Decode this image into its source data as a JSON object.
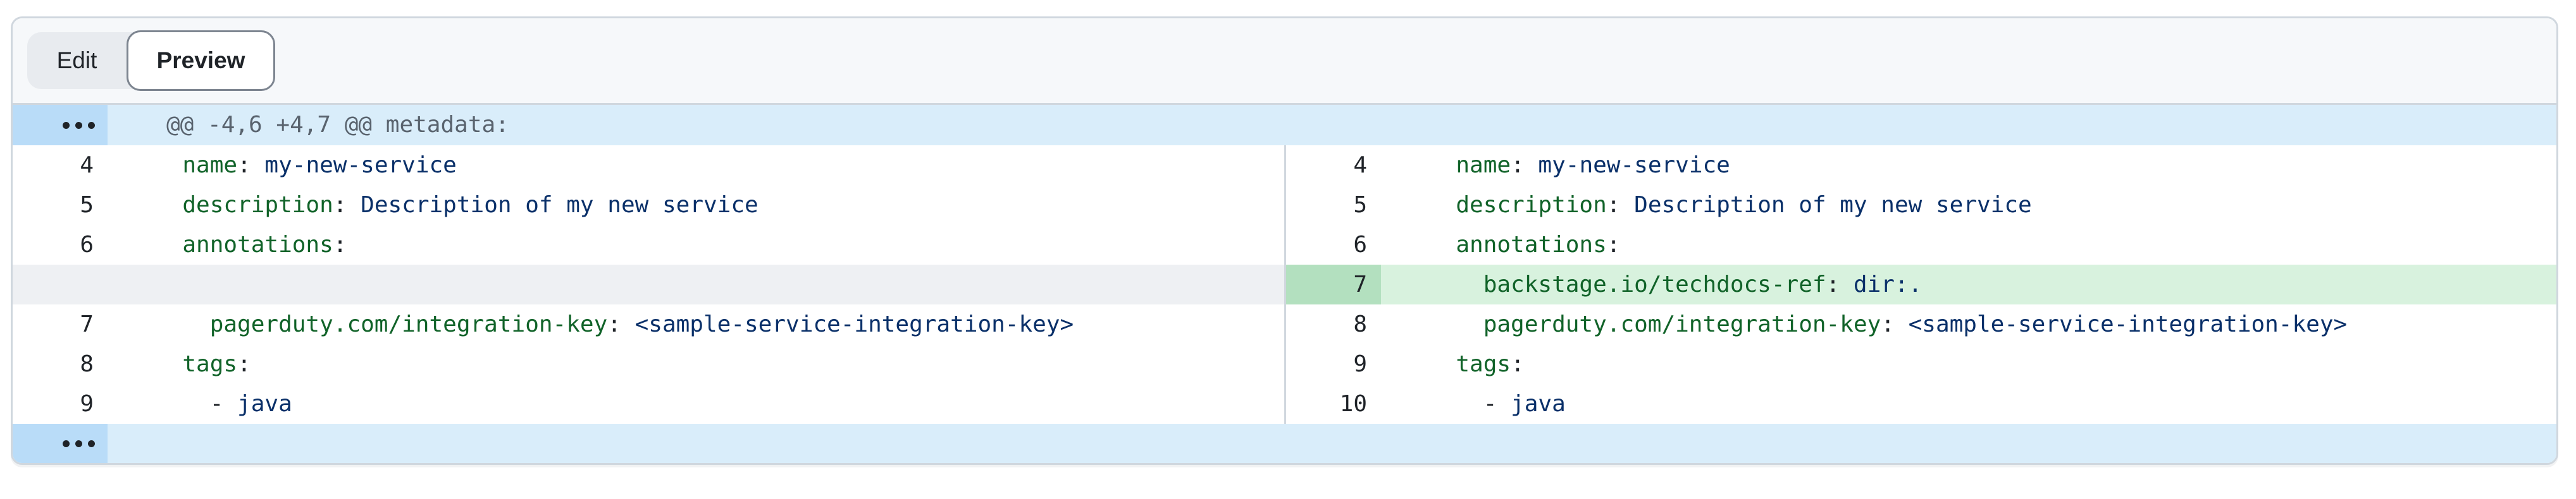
{
  "tabs": {
    "edit_label": "Edit",
    "preview_label": "Preview",
    "active": "Preview"
  },
  "diff": {
    "hunk_header": "@@ -4,6 +4,7 @@ metadata:",
    "expander_icon": "dots-horizontal",
    "rows": [
      {
        "left": {
          "type": "context",
          "num": "4",
          "segments": [
            [
              "pln",
              "  "
            ],
            [
              "key",
              "name"
            ],
            [
              "pln",
              ": "
            ],
            [
              "str",
              "my-new-service"
            ]
          ]
        },
        "right": {
          "type": "context",
          "num": "4",
          "segments": [
            [
              "pln",
              "  "
            ],
            [
              "key",
              "name"
            ],
            [
              "pln",
              ": "
            ],
            [
              "str",
              "my-new-service"
            ]
          ]
        }
      },
      {
        "left": {
          "type": "context",
          "num": "5",
          "segments": [
            [
              "pln",
              "  "
            ],
            [
              "key",
              "description"
            ],
            [
              "pln",
              ": "
            ],
            [
              "str",
              "Description of my new service"
            ]
          ]
        },
        "right": {
          "type": "context",
          "num": "5",
          "segments": [
            [
              "pln",
              "  "
            ],
            [
              "key",
              "description"
            ],
            [
              "pln",
              ": "
            ],
            [
              "str",
              "Description of my new service"
            ]
          ]
        }
      },
      {
        "left": {
          "type": "context",
          "num": "6",
          "segments": [
            [
              "pln",
              "  "
            ],
            [
              "key",
              "annotations"
            ],
            [
              "pln",
              ":"
            ]
          ]
        },
        "right": {
          "type": "context",
          "num": "6",
          "segments": [
            [
              "pln",
              "  "
            ],
            [
              "key",
              "annotations"
            ],
            [
              "pln",
              ":"
            ]
          ]
        }
      },
      {
        "left": {
          "type": "empty",
          "num": "",
          "segments": []
        },
        "right": {
          "type": "added",
          "num": "7",
          "segments": [
            [
              "pln",
              "    "
            ],
            [
              "key",
              "backstage.io/techdocs-ref"
            ],
            [
              "pln",
              ": "
            ],
            [
              "str",
              "dir:."
            ]
          ]
        }
      },
      {
        "left": {
          "type": "context",
          "num": "7",
          "segments": [
            [
              "pln",
              "    "
            ],
            [
              "key",
              "pagerduty.com/integration-key"
            ],
            [
              "pln",
              ": "
            ],
            [
              "str",
              "<sample-service-integration-key>"
            ]
          ]
        },
        "right": {
          "type": "context",
          "num": "8",
          "segments": [
            [
              "pln",
              "    "
            ],
            [
              "key",
              "pagerduty.com/integration-key"
            ],
            [
              "pln",
              ": "
            ],
            [
              "str",
              "<sample-service-integration-key>"
            ]
          ]
        }
      },
      {
        "left": {
          "type": "context",
          "num": "8",
          "segments": [
            [
              "pln",
              "  "
            ],
            [
              "key",
              "tags"
            ],
            [
              "pln",
              ":"
            ]
          ]
        },
        "right": {
          "type": "context",
          "num": "9",
          "segments": [
            [
              "pln",
              "  "
            ],
            [
              "key",
              "tags"
            ],
            [
              "pln",
              ":"
            ]
          ]
        }
      },
      {
        "left": {
          "type": "context",
          "num": "9",
          "segments": [
            [
              "pln",
              "    - "
            ],
            [
              "str",
              "java"
            ]
          ]
        },
        "right": {
          "type": "context",
          "num": "10",
          "segments": [
            [
              "pln",
              "    - "
            ],
            [
              "str",
              "java"
            ]
          ]
        }
      }
    ]
  },
  "colors": {
    "container_border": "#d0d7de",
    "header_bg": "#f6f8fa",
    "hunk_row_bg": "#d9edfa",
    "hunk_gutter_bg": "#b9dcf8",
    "hunk_text": "#59636e",
    "added_line_bg": "#d8f2de",
    "added_gutter_bg": "#b3e0bf",
    "empty_block_bg": "#eef0f3",
    "yaml_key": "#116329",
    "yaml_string": "#0a3069",
    "plain_text": "#1f2328"
  }
}
